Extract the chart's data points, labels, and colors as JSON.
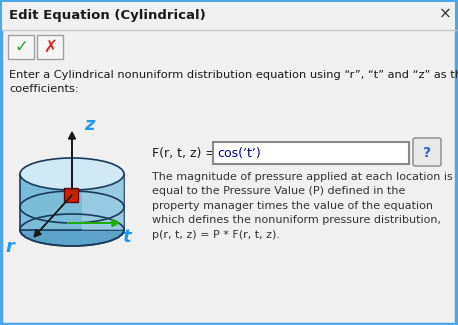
{
  "title": "Edit Equation (Cylindrical)",
  "close_x": "×",
  "instruction_text": "Enter a Cylindrical nonuniform distribution equation using “r”, “t” and “z” as the\ncoefficients:",
  "equation_label": "F(r, t, z) =",
  "equation_value": "cos(ʼtʼ)",
  "description_text": "The magnitude of pressure applied at each location is\nequal to the Pressure Value (P) defined in the\nproperty manager times the value of the equation\nwhich defines the nonuniform pressure distribution,\np(r, t, z) = P * F(r, t, z).",
  "bg_color": "#dcdcdc",
  "dialog_bg": "#f0f0f0",
  "border_color": "#4da6e8",
  "input_bg": "#ffffff",
  "dark_text": "#1a1a1a",
  "desc_text_color": "#333333"
}
